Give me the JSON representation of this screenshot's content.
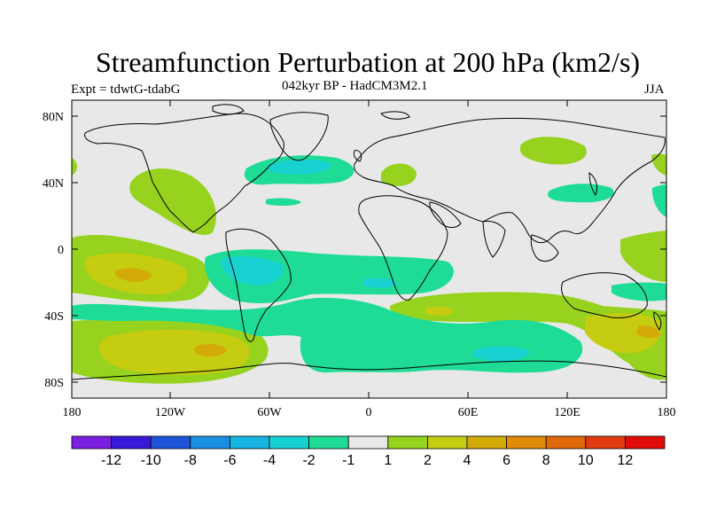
{
  "title": "Streamfunction Perturbation at 200 hPa (km2/s)",
  "left_subtitle": "Expt = tdwtG-tdabG",
  "center_subtitle": "042kyr BP - HadCM3M2.1",
  "right_subtitle": "JJA",
  "axes": {
    "y_ticks": [
      "80N",
      "40N",
      "0",
      "40S",
      "80S"
    ],
    "x_ticks": [
      "180",
      "120W",
      "60W",
      "0",
      "60E",
      "120E",
      "180"
    ]
  },
  "colorbar": {
    "colors": [
      "#7b1fe0",
      "#3a18d8",
      "#1d54d8",
      "#1a8ee0",
      "#16b4e0",
      "#18d2d2",
      "#1edc96",
      "#e8e8e8",
      "#96d21e",
      "#c6cc10",
      "#d4aa08",
      "#e08c08",
      "#e06808",
      "#e03a10",
      "#e00c0c"
    ],
    "labels": [
      "-12",
      "-10",
      "-8",
      "-6",
      "-4",
      "-2",
      "-1",
      "1",
      "2",
      "4",
      "6",
      "8",
      "10",
      "12"
    ]
  }
}
